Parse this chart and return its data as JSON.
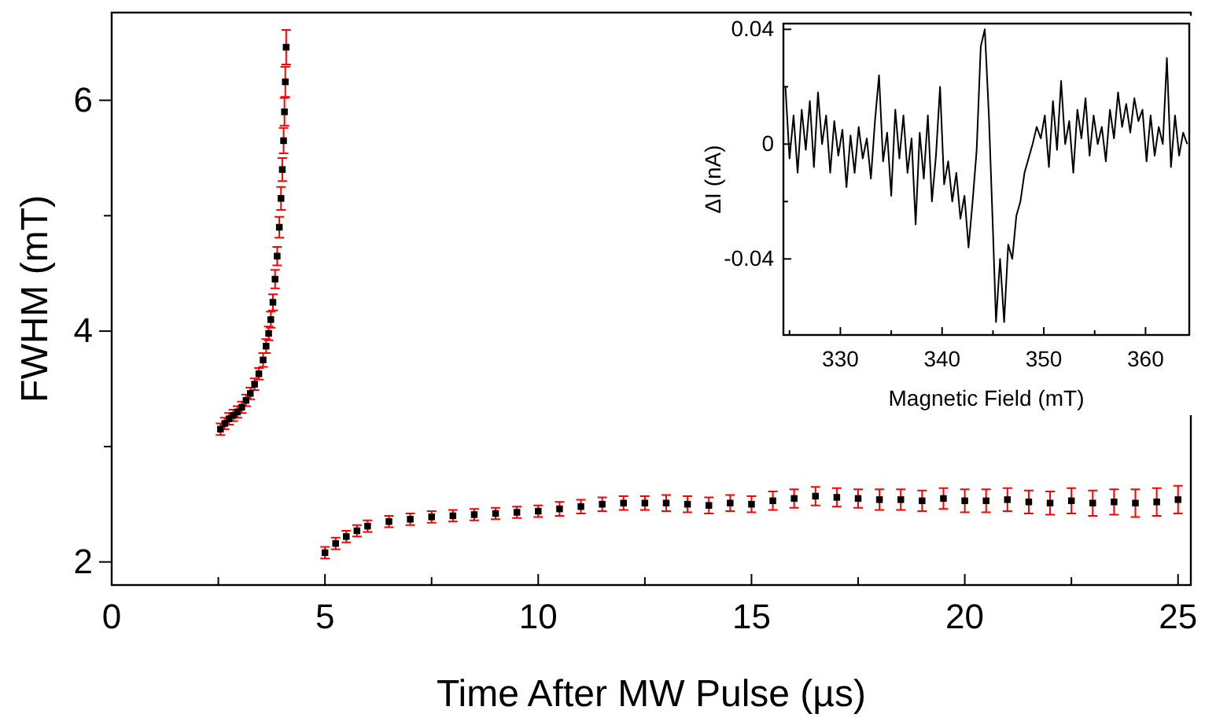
{
  "chart_data": [
    {
      "type": "scatter",
      "xlabel": "Time After MW Pulse (µs)",
      "ylabel": "FWHM (mT)",
      "xlim": [
        0,
        25.3
      ],
      "ylim": [
        1.8,
        6.76
      ],
      "xticks": [
        0,
        {
          "value": 2.5,
          "label": null
        },
        5,
        {
          "value": 7.5,
          "label": null
        },
        10,
        {
          "value": 12.5,
          "label": null
        },
        15,
        {
          "value": 17.5,
          "label": null
        },
        20,
        {
          "value": 22.5,
          "label": null
        },
        25
      ],
      "yticks": [
        2,
        {
          "value": 3,
          "label": null
        },
        4,
        {
          "value": 5,
          "label": null
        },
        6
      ],
      "marker": "square",
      "grid": false,
      "series": [
        {
          "color": "#000000",
          "x": [
            2.55,
            2.65,
            2.75,
            2.85,
            2.95,
            3.05,
            3.15,
            3.25,
            3.35,
            3.45,
            3.55,
            3.62,
            3.68,
            3.73,
            3.78,
            3.83,
            3.88,
            3.93,
            3.97,
            4.0,
            4.03,
            4.05,
            4.07,
            4.09
          ],
          "values": [
            3.15,
            3.2,
            3.24,
            3.27,
            3.3,
            3.34,
            3.4,
            3.46,
            3.54,
            3.63,
            3.75,
            3.87,
            3.98,
            4.1,
            4.25,
            4.45,
            4.65,
            4.9,
            5.15,
            5.4,
            5.65,
            5.9,
            6.16,
            6.46
          ],
          "errors": [
            0.05,
            0.05,
            0.05,
            0.05,
            0.05,
            0.05,
            0.05,
            0.05,
            0.05,
            0.05,
            0.06,
            0.06,
            0.06,
            0.07,
            0.07,
            0.08,
            0.08,
            0.09,
            0.1,
            0.1,
            0.11,
            0.12,
            0.13,
            0.15
          ]
        },
        {
          "color": "#000000",
          "x": [
            5,
            5.25,
            5.5,
            5.75,
            6,
            6.5,
            7,
            7.5,
            8,
            8.5,
            9,
            9.5,
            10,
            10.5,
            11,
            11.5,
            12,
            12.5,
            13,
            13.5,
            14,
            14.5,
            15,
            15.5,
            16,
            16.5,
            17,
            17.5,
            18,
            18.5,
            19,
            19.5,
            20,
            20.5,
            21,
            21.5,
            22,
            22.5,
            23,
            23.5,
            24,
            24.5,
            25
          ],
          "values": [
            2.08,
            2.16,
            2.22,
            2.27,
            2.31,
            2.35,
            2.37,
            2.39,
            2.4,
            2.41,
            2.42,
            2.43,
            2.44,
            2.46,
            2.48,
            2.5,
            2.51,
            2.51,
            2.51,
            2.5,
            2.49,
            2.51,
            2.5,
            2.53,
            2.55,
            2.57,
            2.56,
            2.55,
            2.54,
            2.54,
            2.53,
            2.55,
            2.53,
            2.53,
            2.54,
            2.52,
            2.51,
            2.53,
            2.51,
            2.52,
            2.51,
            2.52,
            2.54
          ],
          "errors": [
            0.05,
            0.05,
            0.05,
            0.05,
            0.05,
            0.05,
            0.05,
            0.05,
            0.05,
            0.05,
            0.05,
            0.05,
            0.05,
            0.06,
            0.06,
            0.06,
            0.06,
            0.06,
            0.07,
            0.07,
            0.07,
            0.07,
            0.07,
            0.08,
            0.08,
            0.08,
            0.08,
            0.08,
            0.09,
            0.09,
            0.09,
            0.09,
            0.1,
            0.1,
            0.1,
            0.1,
            0.1,
            0.11,
            0.11,
            0.11,
            0.12,
            0.12,
            0.12
          ]
        }
      ]
    },
    {
      "type": "line",
      "xlabel": "Magnetic Field (mT)",
      "ylabel": "ΔI (nA)",
      "xlim": [
        324.4,
        364.3
      ],
      "ylim": [
        -0.0665,
        0.042
      ],
      "xticks": [
        {
          "value": 325,
          "label": null
        },
        330,
        {
          "value": 335,
          "label": null
        },
        340,
        {
          "value": 345,
          "label": null
        },
        350,
        {
          "value": 355,
          "label": null
        },
        360
      ],
      "yticks": [
        -0.04,
        {
          "value": -0.02,
          "label": null
        },
        0,
        {
          "value": 0.02,
          "label": null
        },
        0.04
      ],
      "grid": false,
      "series": [
        {
          "color": "#000000",
          "x": [
            324.6,
            325.0,
            325.4,
            325.8,
            326.2,
            326.6,
            327.0,
            327.4,
            327.8,
            328.2,
            328.6,
            329.0,
            329.4,
            329.8,
            330.2,
            330.6,
            331.0,
            331.4,
            331.8,
            332.2,
            332.6,
            333.0,
            333.4,
            333.8,
            334.2,
            334.6,
            335.0,
            335.4,
            335.8,
            336.2,
            336.6,
            337.0,
            337.4,
            337.8,
            338.2,
            338.6,
            339.0,
            339.4,
            339.8,
            340.2,
            340.6,
            341.0,
            341.4,
            341.8,
            342.2,
            342.6,
            343.0,
            343.4,
            343.8,
            344.2,
            344.6,
            345.0,
            345.3,
            345.7,
            346.1,
            346.5,
            346.9,
            347.3,
            347.7,
            348.1,
            348.5,
            348.9,
            349.3,
            349.7,
            350.1,
            350.5,
            350.9,
            351.3,
            351.7,
            352.1,
            352.5,
            352.9,
            353.3,
            353.7,
            354.1,
            354.5,
            354.9,
            355.3,
            355.7,
            356.1,
            356.5,
            356.9,
            357.3,
            357.7,
            358.1,
            358.5,
            358.9,
            359.3,
            359.7,
            360.1,
            360.5,
            360.9,
            361.3,
            361.7,
            362.1,
            362.5,
            362.9,
            363.3,
            363.7,
            364.1
          ],
          "values": [
            0.02,
            -0.005,
            0.01,
            -0.01,
            0.012,
            -0.002,
            0.015,
            -0.008,
            0.018,
            0.0,
            0.01,
            -0.01,
            0.008,
            -0.004,
            0.005,
            -0.015,
            0.003,
            -0.01,
            0.006,
            -0.005,
            0.002,
            -0.012,
            0.008,
            0.024,
            -0.006,
            0.004,
            -0.018,
            0.012,
            -0.005,
            0.01,
            -0.01,
            0.002,
            -0.028,
            0.004,
            -0.012,
            0.01,
            -0.02,
            -0.004,
            0.02,
            -0.014,
            -0.006,
            -0.02,
            -0.01,
            -0.026,
            -0.018,
            -0.036,
            -0.02,
            -0.002,
            0.034,
            0.04,
            0.01,
            -0.03,
            -0.062,
            -0.04,
            -0.062,
            -0.035,
            -0.04,
            -0.025,
            -0.02,
            -0.01,
            -0.005,
            0.0,
            0.006,
            0.002,
            0.01,
            -0.008,
            0.015,
            -0.002,
            0.022,
            0.0,
            0.008,
            -0.01,
            0.012,
            0.002,
            0.016,
            -0.004,
            0.01,
            0.0,
            0.006,
            -0.006,
            0.012,
            0.002,
            0.018,
            0.006,
            0.014,
            0.004,
            0.016,
            0.008,
            0.012,
            -0.006,
            0.01,
            -0.004,
            0.006,
            0.0,
            0.03,
            -0.008,
            0.01,
            -0.004,
            0.004,
            0.0
          ]
        }
      ]
    }
  ]
}
